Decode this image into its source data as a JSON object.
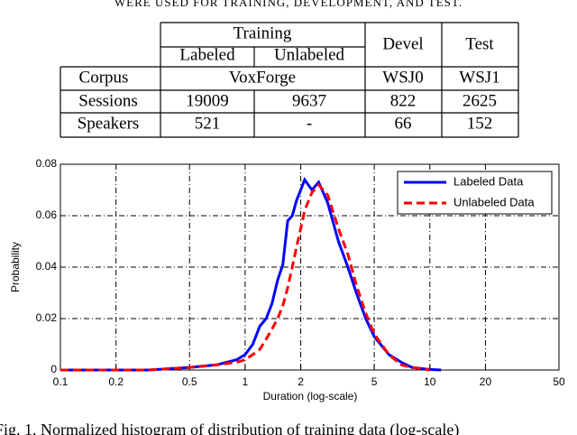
{
  "table_caption": "WERE USED FOR TRAINING, DEVELOPMENT, AND TEST.",
  "table": {
    "group_header": [
      "Training",
      "Devel",
      "Test"
    ],
    "sub_header": [
      "Labeled",
      "Unlabeled"
    ],
    "corpus_row": [
      "Corpus",
      "VoxForge",
      "WSJ0",
      "WSJ1"
    ],
    "rows": [
      [
        "Sessions",
        19009,
        9637,
        822,
        2625
      ],
      [
        "Speakers",
        521,
        "-",
        66,
        152
      ]
    ]
  },
  "chart_data": {
    "type": "line",
    "xlabel": "Duration (log-scale)",
    "ylabel": "Probability",
    "x": [
      0.1,
      0.3,
      0.5,
      0.7,
      0.9,
      1.0,
      1.1,
      1.2,
      1.3,
      1.4,
      1.5,
      1.6,
      1.7,
      1.8,
      1.9,
      2.0,
      2.1,
      2.3,
      2.5,
      2.8,
      3.2,
      3.6,
      4.0,
      4.5,
      5.0,
      6.0,
      7.0,
      8.0,
      10.0,
      11.5
    ],
    "series": [
      {
        "name": "Labeled Data",
        "color": "#0000ff",
        "dash": false,
        "values": [
          0,
          0,
          0.001,
          0.002,
          0.004,
          0.006,
          0.01,
          0.017,
          0.02,
          0.026,
          0.035,
          0.041,
          0.058,
          0.06,
          0.066,
          0.07,
          0.074,
          0.07,
          0.073,
          0.065,
          0.05,
          0.04,
          0.03,
          0.02,
          0.013,
          0.006,
          0.003,
          0.001,
          0.0002,
          0
        ]
      },
      {
        "name": "Unlabeled Data",
        "color": "#ff0000",
        "dash": true,
        "values": [
          0,
          0,
          0.001,
          0.002,
          0.003,
          0.004,
          0.006,
          0.008,
          0.012,
          0.016,
          0.02,
          0.025,
          0.032,
          0.04,
          0.048,
          0.055,
          0.062,
          0.069,
          0.072,
          0.068,
          0.055,
          0.045,
          0.033,
          0.022,
          0.014,
          0.006,
          0.002,
          0.001,
          0,
          null
        ]
      }
    ],
    "xscale": "log",
    "xlim": [
      0.1,
      50
    ],
    "xticks": [
      0.1,
      0.2,
      0.5,
      1,
      2,
      5,
      10,
      20,
      50
    ],
    "ylim": [
      0,
      0.08
    ],
    "yticks": [
      0,
      0.02,
      0.04,
      0.06,
      0.08
    ],
    "grid": true,
    "legend": "upper right"
  },
  "figure_caption": "Fig. 1.  Normalized histogram of distribution of training data (log-scale)"
}
